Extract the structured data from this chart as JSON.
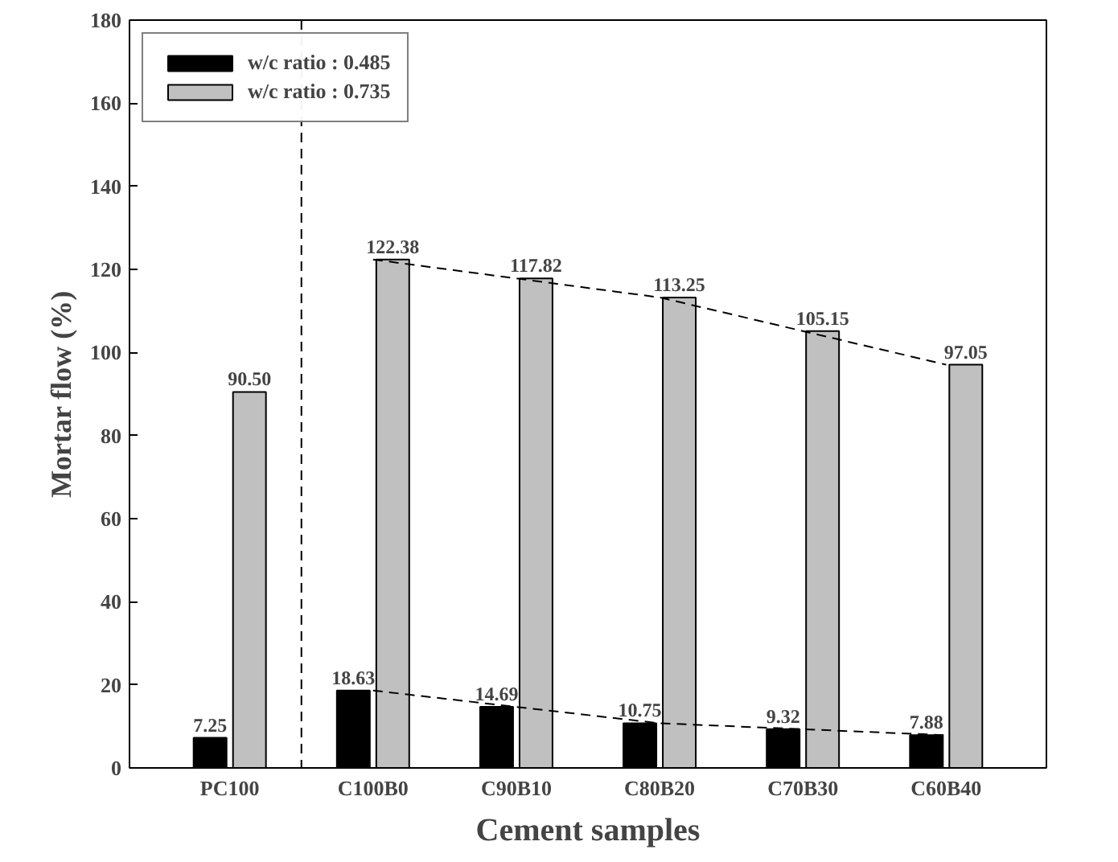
{
  "chart_data": {
    "type": "bar",
    "xlabel": "Cement samples",
    "ylabel": "Mortar flow (%)",
    "categories": [
      "PC100",
      "C100B0",
      "C90B10",
      "C80B20",
      "C70B30",
      "C60B40"
    ],
    "series": [
      {
        "name": "w/c ratio : 0.485",
        "color": "#000000",
        "values": [
          7.25,
          18.63,
          14.69,
          10.75,
          9.32,
          7.88
        ],
        "value_labels": [
          "7.25",
          "18.63",
          "14.69",
          "10.75",
          "9.32",
          "7.88"
        ]
      },
      {
        "name": "w/c ratio : 0.735",
        "color": "#c0c0c0",
        "values": [
          90.5,
          122.38,
          117.82,
          113.25,
          105.15,
          97.05
        ],
        "value_labels": [
          "90.50",
          "122.38",
          "117.82",
          "113.25",
          "105.15",
          "97.05"
        ]
      },
      {
        "type": "line",
        "color": "#000000",
        "line_style": "dashed",
        "x": [
          "C100B0",
          "C90B10",
          "C80B20",
          "C70B30",
          "C60B40"
        ],
        "values": [
          18.63,
          14.69,
          10.75,
          9.32,
          7.88
        ]
      },
      {
        "type": "line",
        "color": "#000000",
        "line_style": "dashed",
        "x": [
          "C100B0",
          "C90B10",
          "C80B20",
          "C70B30",
          "C60B40"
        ],
        "values": [
          122.38,
          117.82,
          113.25,
          105.15,
          97.05
        ]
      }
    ],
    "ylim": [
      0,
      180
    ],
    "yticks": [
      0,
      20,
      40,
      60,
      80,
      100,
      120,
      140,
      160,
      180
    ],
    "grid": false,
    "legend": "top left"
  }
}
